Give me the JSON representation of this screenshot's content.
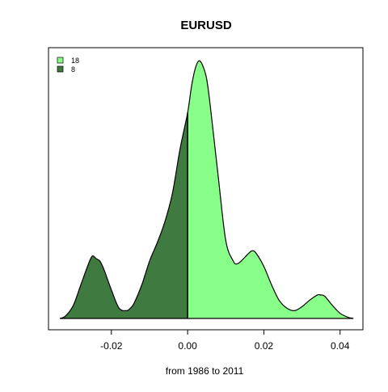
{
  "chart_data": {
    "type": "area",
    "title": "EURUSD",
    "xlabel": "from 1986 to 2011",
    "ylabel": "",
    "xlim": [
      -0.0365,
      0.046
    ],
    "ylim": [
      0,
      1.0
    ],
    "xticks": [
      -0.02,
      0.0,
      0.02,
      0.04
    ],
    "xtick_labels": [
      "-0.02",
      "0.00",
      "0.02",
      "0.04"
    ],
    "legend": {
      "position": "top-left",
      "entries": [
        {
          "label": "18",
          "color": "#88ff88"
        },
        {
          "label": "8",
          "color": "#3f7a40"
        }
      ]
    },
    "split_at": 0.0,
    "density_x": [
      -0.0335,
      -0.032,
      -0.03,
      -0.028,
      -0.026,
      -0.025,
      -0.024,
      -0.023,
      -0.022,
      -0.021,
      -0.02,
      -0.018,
      -0.016,
      -0.015,
      -0.014,
      -0.012,
      -0.01,
      -0.008,
      -0.006,
      -0.004,
      -0.002,
      0.0,
      0.001,
      0.002,
      0.003,
      0.004,
      0.005,
      0.006,
      0.008,
      0.01,
      0.012,
      0.013,
      0.014,
      0.016,
      0.017,
      0.018,
      0.02,
      0.022,
      0.024,
      0.026,
      0.028,
      0.03,
      0.032,
      0.034,
      0.035,
      0.036,
      0.038,
      0.04,
      0.042,
      0.0435
    ],
    "density_y": [
      0.0,
      0.01,
      0.05,
      0.13,
      0.21,
      0.24,
      0.23,
      0.22,
      0.19,
      0.15,
      0.11,
      0.04,
      0.03,
      0.04,
      0.06,
      0.13,
      0.22,
      0.29,
      0.37,
      0.48,
      0.65,
      0.79,
      0.89,
      0.96,
      0.99,
      0.97,
      0.92,
      0.81,
      0.55,
      0.3,
      0.22,
      0.21,
      0.22,
      0.25,
      0.26,
      0.25,
      0.2,
      0.13,
      0.07,
      0.04,
      0.03,
      0.045,
      0.07,
      0.09,
      0.09,
      0.085,
      0.05,
      0.02,
      0.005,
      0.0
    ],
    "colors": {
      "positive_fill": "#88ff88",
      "negative_fill": "#3f7a40",
      "outline": "#000000"
    },
    "grid": false
  }
}
